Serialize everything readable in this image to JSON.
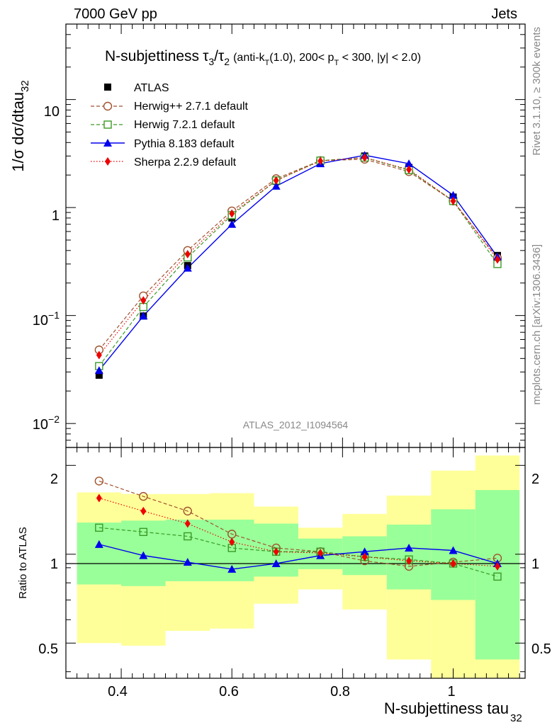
{
  "header": {
    "energy_label": "7000 GeV pp",
    "process_label": "Jets"
  },
  "side_labels": {
    "rivet": "Rivet 3.1.10, ≥ 300k events",
    "mcplots": "mcplots.cern.ch [arXiv:1306.3436]"
  },
  "watermark": "ATLAS_2012_I1094564",
  "title": {
    "main": "N-subjettiness",
    "tau3": "τ",
    "tau3_sub": "3",
    "slash": "/",
    "tau2": "τ",
    "tau2_sub": "2",
    "cuts_pre": "(anti-k",
    "cuts_sub": "T",
    "cuts_mid": "(1.0), 200< p",
    "cuts_sub2": "T",
    "cuts_post": " < 300, |y| < 2.0)"
  },
  "legend": {
    "atlas": "ATLAS",
    "herwigpp": "Herwig++ 2.7.1 default",
    "herwig7": "Herwig 7.2.1 default",
    "pythia": "Pythia 8.183 default",
    "sherpa": "Sherpa 2.2.9 default"
  },
  "axes": {
    "ylabel_main": "1/σ dσ/dtau",
    "ylabel_main_sub": "32",
    "ylabel_ratio": "Ratio to ATLAS",
    "xlabel": "N-subjettiness tau",
    "xlabel_sub": "32",
    "ytick_10": "10",
    "ytick_1": "1",
    "ytick_01_base": "10",
    "ytick_01_exp": "−1",
    "ytick_001_base": "10",
    "ytick_001_exp": "−2",
    "rtick_2": "2",
    "rtick_1": "1",
    "rtick_05": "0.5",
    "xtick_04": "0.4",
    "xtick_06": "0.6",
    "xtick_08": "0.8",
    "xtick_10": "1"
  },
  "colors": {
    "atlas": "#000000",
    "herwigpp": "#a0522d",
    "herwig7": "#3a9a25",
    "pythia": "#0000ee",
    "sherpa": "#ee0000",
    "band_inner": "#99ff99",
    "band_outer": "#ffff99"
  },
  "chart_data": {
    "type": "line",
    "x": [
      0.36,
      0.44,
      0.52,
      0.6,
      0.68,
      0.76,
      0.84,
      0.92,
      1.0,
      1.08
    ],
    "bin_edges": [
      0.32,
      0.4,
      0.48,
      0.56,
      0.64,
      0.72,
      0.8,
      0.88,
      0.96,
      1.04,
      1.12
    ],
    "xlim": [
      0.3,
      1.13
    ],
    "main_ylim": [
      0.006,
      50
    ],
    "main_yscale": "log",
    "ratio_ylim": [
      0.38,
      2.3
    ],
    "ratio_yscale": "log",
    "atlas": {
      "values": [
        0.028,
        0.099,
        0.29,
        0.8,
        1.75,
        2.65,
        3.0,
        2.35,
        1.25,
        0.36
      ]
    },
    "series": [
      {
        "name": "Herwig++ 2.7.1 default",
        "key": "herwigpp",
        "marker": "circle-open",
        "dash": "dashed",
        "values": [
          0.048,
          0.152,
          0.4,
          0.93,
          1.85,
          2.72,
          2.8,
          2.15,
          1.15,
          0.34
        ],
        "ratio": [
          1.77,
          1.57,
          1.4,
          1.17,
          1.05,
          1.02,
          0.95,
          0.91,
          0.94,
          0.97
        ]
      },
      {
        "name": "Herwig 7.2.1 default",
        "key": "herwig7",
        "marker": "square-open",
        "dash": "dashed",
        "values": [
          0.034,
          0.12,
          0.345,
          0.85,
          1.78,
          2.72,
          2.9,
          2.22,
          1.15,
          0.3
        ],
        "ratio": [
          1.23,
          1.19,
          1.15,
          1.05,
          1.02,
          1.02,
          0.98,
          0.96,
          0.93,
          0.84
        ]
      },
      {
        "name": "Pythia 8.183 default",
        "key": "pythia",
        "marker": "triangle",
        "dash": "solid",
        "values": [
          0.031,
          0.099,
          0.275,
          0.7,
          1.58,
          2.55,
          3.05,
          2.55,
          1.3,
          0.35
        ],
        "ratio": [
          1.08,
          0.99,
          0.94,
          0.89,
          0.93,
          0.99,
          1.02,
          1.05,
          1.03,
          0.93
        ]
      },
      {
        "name": "Sherpa 2.2.9 default",
        "key": "sherpa",
        "marker": "diamond",
        "dash": "dotted",
        "values": [
          0.043,
          0.138,
          0.37,
          0.88,
          1.78,
          2.7,
          2.9,
          2.25,
          1.15,
          0.33
        ],
        "ratio": [
          1.55,
          1.4,
          1.27,
          1.1,
          1.02,
          1.01,
          0.98,
          0.95,
          0.93,
          0.91
        ]
      }
    ],
    "ratio_band_inner": {
      "low": [
        0.79,
        0.78,
        0.81,
        0.81,
        0.84,
        0.89,
        0.85,
        0.76,
        0.7,
        0.44
      ],
      "high": [
        1.28,
        1.3,
        1.31,
        1.31,
        1.27,
        1.13,
        1.15,
        1.26,
        1.42,
        1.65
      ]
    },
    "ratio_band_outer": {
      "low": [
        0.5,
        0.49,
        0.55,
        0.56,
        0.68,
        0.76,
        0.65,
        0.44,
        0.35,
        0.34
      ],
      "high": [
        1.62,
        1.6,
        1.6,
        1.61,
        1.45,
        1.23,
        1.37,
        1.58,
        1.92,
        2.16
      ]
    }
  }
}
